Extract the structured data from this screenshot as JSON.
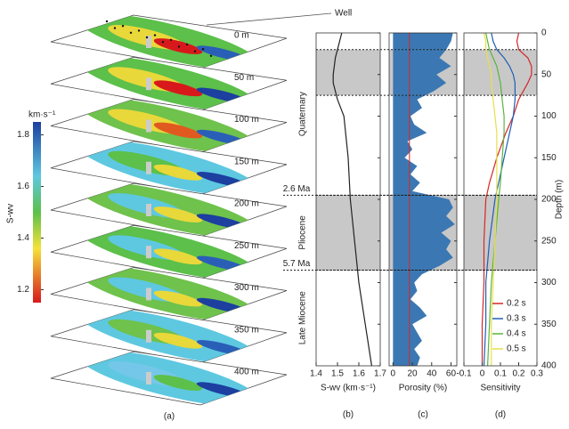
{
  "panel_a": {
    "label": "(a)",
    "well_label": "Well",
    "slices": [
      "0 m",
      "50 m",
      "100 m",
      "150 m",
      "200 m",
      "250 m",
      "300 m",
      "350 m",
      "400 m"
    ],
    "colorbar": {
      "label": "S-wv",
      "unit": "km·s⁻¹",
      "lim": [
        1.15,
        1.85
      ],
      "ticks": [
        1.2,
        1.4,
        1.6,
        1.8
      ]
    }
  },
  "depth_axis": {
    "label": "Depth (m)",
    "ylim": [
      0,
      400
    ],
    "yticks": [
      0,
      50,
      100,
      150,
      200,
      250,
      300,
      350,
      400
    ]
  },
  "shaded_intervals": [
    [
      20,
      75
    ],
    [
      195,
      285
    ]
  ],
  "boundaries": [
    {
      "depth": 195,
      "label": "2.6 Ma"
    },
    {
      "depth": 285,
      "label": "5.7 Ma"
    }
  ],
  "epochs": [
    "Quaternary",
    "Pliocene",
    "Late Miocene"
  ],
  "chart_data": [
    {
      "type": "line",
      "panel_label": "(b)",
      "x_label": "S-wv (km·s⁻¹)",
      "xlim": [
        1.4,
        1.7
      ],
      "xticks": [
        1.4,
        1.5,
        1.6,
        1.7
      ],
      "depth": [
        0,
        10,
        20,
        30,
        50,
        60,
        70,
        80,
        100,
        150,
        200,
        250,
        300,
        350,
        400
      ],
      "series": [
        {
          "color": "#222222",
          "values": [
            1.52,
            1.51,
            1.5,
            1.49,
            1.48,
            1.48,
            1.49,
            1.5,
            1.53,
            1.55,
            1.56,
            1.58,
            1.6,
            1.63,
            1.66
          ]
        }
      ]
    },
    {
      "type": "area",
      "panel_label": "(c)",
      "x_label": "Porosity (%)",
      "xlim": [
        -4,
        66
      ],
      "xticks": [
        0,
        20,
        40,
        60
      ],
      "depth": [
        0,
        10,
        20,
        30,
        40,
        50,
        60,
        70,
        80,
        90,
        100,
        110,
        120,
        130,
        140,
        150,
        160,
        170,
        180,
        190,
        200,
        210,
        220,
        230,
        240,
        250,
        260,
        270,
        280,
        290,
        300,
        310,
        320,
        330,
        340,
        350,
        360,
        370,
        380,
        390,
        400
      ],
      "series": [
        {
          "color": "#3b78b3",
          "values": [
            62,
            60,
            55,
            48,
            60,
            45,
            55,
            42,
            25,
            30,
            18,
            22,
            35,
            15,
            20,
            12,
            25,
            18,
            28,
            20,
            58,
            62,
            55,
            64,
            50,
            60,
            55,
            62,
            48,
            30,
            22,
            25,
            18,
            28,
            35,
            20,
            25,
            30,
            22,
            28,
            25
          ]
        }
      ],
      "reference_line": {
        "value": 17,
        "color": "#d62728"
      }
    },
    {
      "type": "line",
      "panel_label": "(d)",
      "x_label": "Sensitivity",
      "xlim": [
        -0.1,
        0.3
      ],
      "xticks": [
        -0.1,
        0,
        0.1,
        0.2,
        0.3
      ],
      "legend": "lower right",
      "depth": [
        0,
        10,
        20,
        30,
        40,
        50,
        60,
        80,
        100,
        120,
        150,
        180,
        200,
        250,
        300,
        350,
        400
      ],
      "series": [
        {
          "name": "0.2 s",
          "color": "#d62728",
          "values": [
            0.2,
            0.19,
            0.2,
            0.25,
            0.27,
            0.27,
            0.25,
            0.2,
            0.17,
            0.13,
            0.08,
            0.04,
            0.02,
            0.01,
            0.01,
            0.0,
            0.0
          ]
        },
        {
          "name": "0.3 s",
          "color": "#1f5fb4",
          "values": [
            0.05,
            0.06,
            0.08,
            0.12,
            0.15,
            0.17,
            0.18,
            0.18,
            0.17,
            0.15,
            0.12,
            0.09,
            0.07,
            0.04,
            0.02,
            0.02,
            0.01
          ]
        },
        {
          "name": "0.4 s",
          "color": "#5ab43c",
          "values": [
            0.02,
            0.03,
            0.04,
            0.06,
            0.08,
            0.09,
            0.1,
            0.11,
            0.12,
            0.12,
            0.11,
            0.1,
            0.09,
            0.07,
            0.05,
            0.04,
            0.03
          ]
        },
        {
          "name": "0.5 s",
          "color": "#e6e04a",
          "values": [
            0.01,
            0.02,
            0.02,
            0.03,
            0.04,
            0.05,
            0.05,
            0.06,
            0.07,
            0.08,
            0.08,
            0.08,
            0.08,
            0.07,
            0.06,
            0.05,
            0.05
          ]
        }
      ]
    }
  ]
}
